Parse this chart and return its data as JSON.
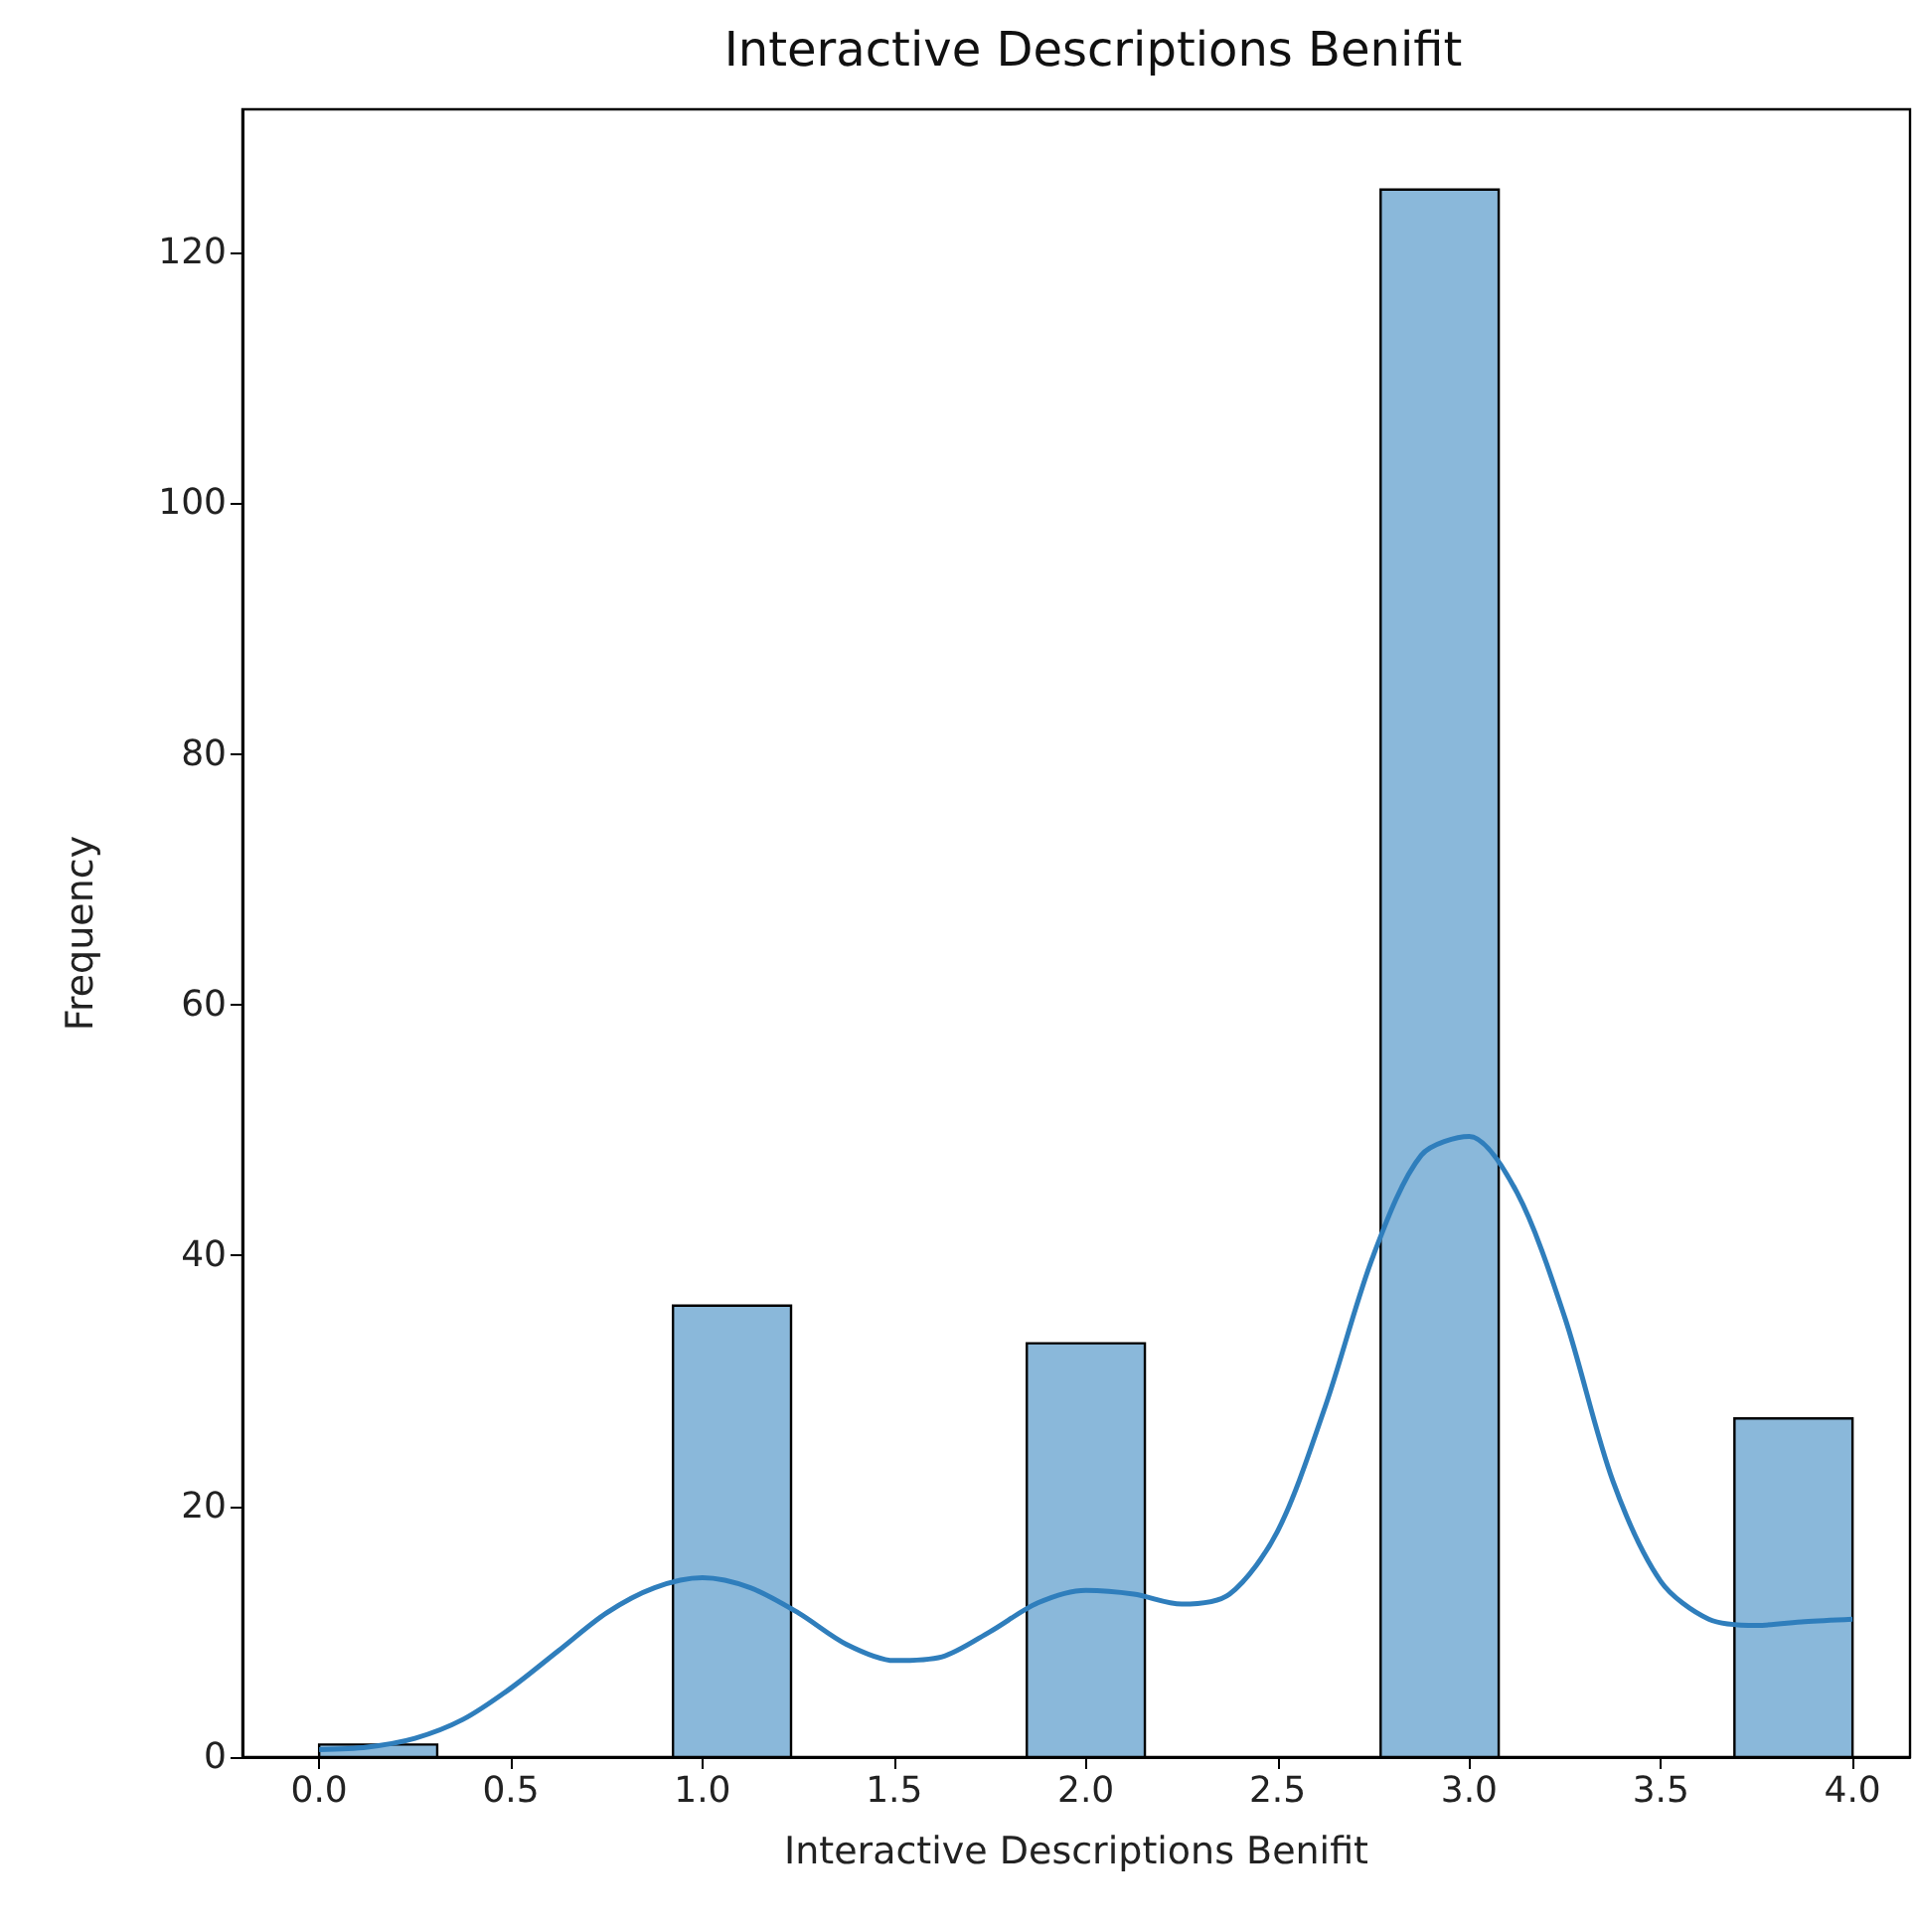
{
  "chart_data": {
    "type": "histogram",
    "title": "Interactive Descriptions Benifit",
    "xlabel": "Interactive Descriptions Benifit",
    "ylabel": "Frequency",
    "xlim": [
      -0.2,
      4.15
    ],
    "ylim": [
      0,
      131.4
    ],
    "xticks": [
      {
        "value": 0,
        "label": "0.0"
      },
      {
        "value": 0.5,
        "label": "0.5"
      },
      {
        "value": 1,
        "label": "1.0"
      },
      {
        "value": 1.5,
        "label": "1.5"
      },
      {
        "value": 2,
        "label": "2.0"
      },
      {
        "value": 2.5,
        "label": "2.5"
      },
      {
        "value": 3,
        "label": "3.0"
      },
      {
        "value": 3.5,
        "label": "3.5"
      },
      {
        "value": 4,
        "label": "4.0"
      }
    ],
    "yticks": [
      0,
      20,
      40,
      60,
      80,
      100,
      120
    ],
    "series": [
      {
        "color": "#8ab8da",
        "bins": [
          0,
          0.308,
          0.615,
          0.923,
          1.231,
          1.538,
          1.846,
          2.154,
          2.462,
          2.769,
          3.077,
          3.385,
          3.692,
          4.0
        ],
        "values": [
          1,
          0,
          0,
          36,
          0,
          0,
          33,
          0,
          0,
          125,
          0,
          0,
          27
        ]
      },
      {
        "type": "line",
        "color": "#2f7ebc",
        "x": [
          0,
          0.125,
          0.25,
          0.375,
          0.5,
          0.625,
          0.75,
          0.875,
          1.0,
          1.125,
          1.25,
          1.375,
          1.5,
          1.625,
          1.75,
          1.875,
          2.0,
          2.125,
          2.25,
          2.375,
          2.5,
          2.625,
          2.75,
          2.875,
          3.0,
          3.125,
          3.25,
          3.375,
          3.5,
          3.625,
          3.75,
          3.875,
          4.0
        ],
        "values": [
          0.6,
          0.8,
          1.5,
          3,
          5.5,
          8.5,
          11.5,
          13.5,
          14.3,
          13.5,
          11.5,
          9,
          7.7,
          8,
          10,
          12.3,
          13.3,
          13,
          12.2,
          13,
          18,
          28,
          40,
          48,
          49.5,
          45,
          35,
          22,
          14,
          11,
          10.5,
          10.8,
          11
        ]
      }
    ]
  }
}
